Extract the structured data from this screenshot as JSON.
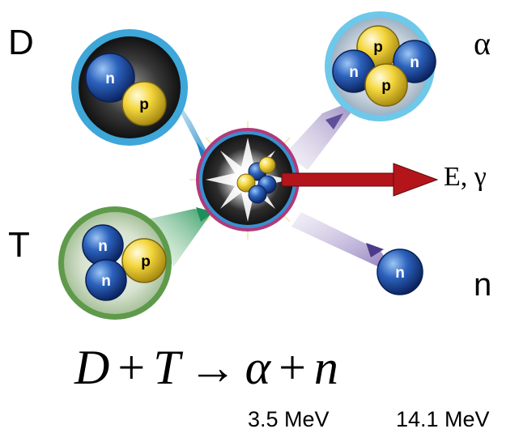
{
  "labels": {
    "deuterium": "D",
    "tritium": "T",
    "alpha": "α",
    "energy_gamma": "E, γ",
    "neutron": "n"
  },
  "particles": {
    "neutron": "n",
    "proton": "p"
  },
  "equation": {
    "lhs1": "D",
    "plus": "+",
    "lhs2": "T",
    "arrow": "→",
    "rhs1": "α",
    "rhs2": "n"
  },
  "energies": {
    "alpha": "3.5 MeV",
    "neutron": "14.1 MeV"
  },
  "colors": {
    "neutron": "#1f4fa8",
    "proton": "#f2d43a",
    "energy_arrow": "#b3151b",
    "deuterium_ring": "#3ea6d8",
    "tritium_ring": "#6fa85a",
    "alpha_ring": "#6ec8ea",
    "reaction_ring": "#b03a7a"
  }
}
